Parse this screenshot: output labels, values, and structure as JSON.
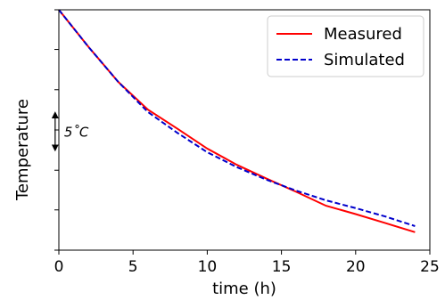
{
  "chart_data": {
    "type": "line",
    "title": "",
    "xlabel": "time (h)",
    "ylabel": "Temperature",
    "xlim": [
      0,
      25
    ],
    "ylim": [
      -3,
      37
    ],
    "x_ticks": [
      0,
      5,
      10,
      15,
      20,
      25
    ],
    "x_tick_labels": [
      "0",
      "5",
      "10",
      "15",
      "20",
      "25"
    ],
    "y_ticks": [
      -3,
      3.7,
      10.3,
      17,
      23.7,
      30.4,
      37
    ],
    "y_tick_labels_shown": false,
    "grid": false,
    "legend": {
      "position": "top-right",
      "entries": [
        "Measured",
        "Simulated"
      ]
    },
    "series": [
      {
        "name": "Measured",
        "color": "#ff0000",
        "line_style": "solid",
        "x": [
          0,
          2,
          4,
          6,
          8,
          10,
          12,
          14,
          16,
          18,
          20,
          22,
          24
        ],
        "y": [
          37.0,
          30.8,
          25.0,
          20.4,
          17.2,
          13.9,
          11.2,
          8.9,
          6.7,
          4.4,
          3.0,
          1.5,
          0.0
        ]
      },
      {
        "name": "Simulated",
        "color": "#0000cc",
        "line_style": "dashed",
        "x": [
          0,
          2,
          4,
          6,
          8,
          10,
          12,
          14,
          16,
          18,
          20,
          22,
          24
        ],
        "y": [
          37.0,
          30.8,
          25.0,
          20.0,
          16.5,
          13.3,
          10.8,
          8.7,
          6.9,
          5.3,
          4.0,
          2.6,
          1.0
        ]
      }
    ],
    "annotations": [
      {
        "text": "5˚C",
        "type": "double-arrow-scale",
        "x": -0.25,
        "y_from": 13.4,
        "y_to": 20.1
      }
    ]
  }
}
